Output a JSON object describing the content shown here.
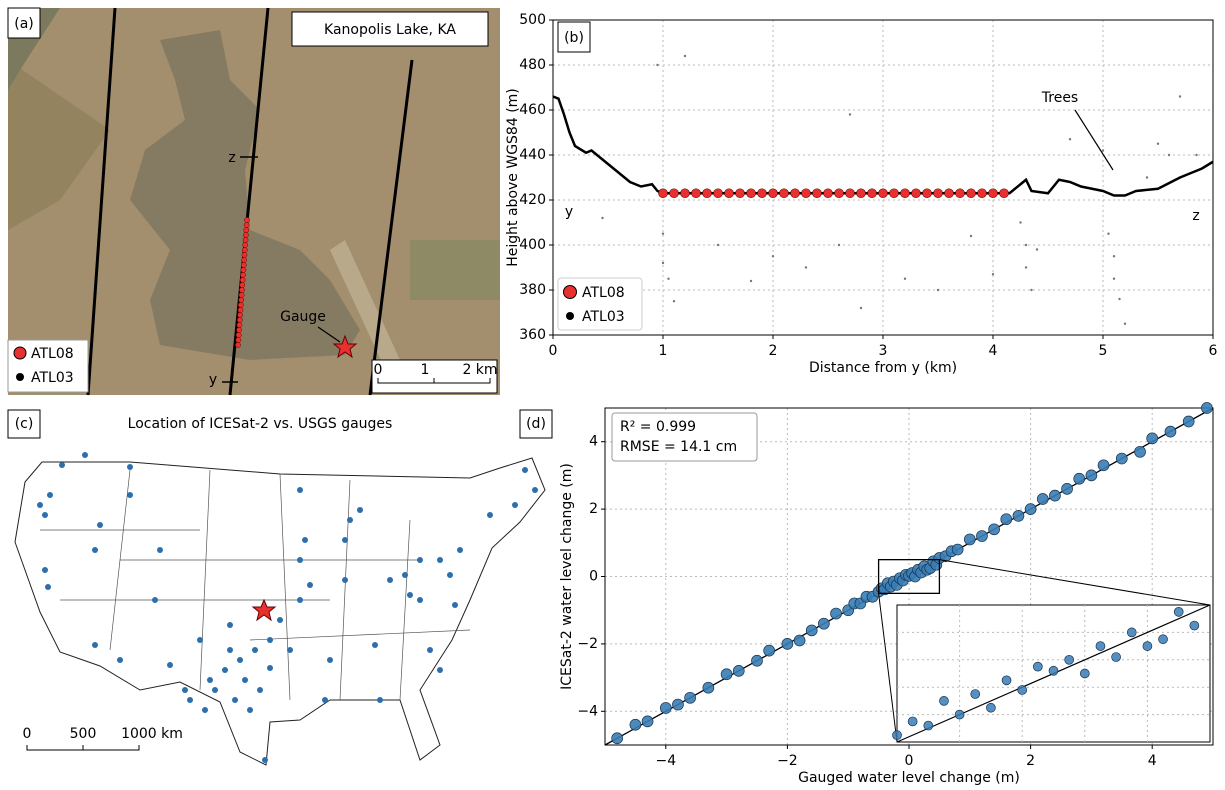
{
  "panel_a": {
    "label": "(a)",
    "title": "Kanopolis Lake, KA",
    "z_label": "z",
    "y_label": "y",
    "gauge_label": "Gauge",
    "legend": [
      "ATL08",
      "ATL03"
    ],
    "scale_labels": [
      "0",
      "1",
      "2 km"
    ]
  },
  "panel_c": {
    "label": "(c)",
    "title": "Location of ICESat-2 vs. USGS gauges",
    "scale_labels": [
      "0",
      "500",
      "1000 km"
    ]
  },
  "chart_data": [
    {
      "type": "line",
      "panel_label": "(b)",
      "xlabel": "Distance from y (km)",
      "ylabel": "Height above WGS84 (m)",
      "xlim": [
        0,
        6
      ],
      "ylim": [
        360,
        500
      ],
      "xticks": [
        0,
        1,
        2,
        3,
        4,
        5,
        6
      ],
      "yticks": [
        360,
        380,
        400,
        420,
        440,
        460,
        480,
        500
      ],
      "grid": true,
      "annotations": {
        "start": "y",
        "end": "z",
        "trees": "Trees"
      },
      "legend": "lower left",
      "series": [
        {
          "name": "ATL08",
          "color": "#e8312f",
          "x": [
            1.0,
            1.1,
            1.2,
            1.3,
            1.4,
            1.5,
            1.6,
            1.7,
            1.8,
            1.9,
            2.0,
            2.1,
            2.2,
            2.3,
            2.4,
            2.5,
            2.6,
            2.7,
            2.8,
            2.9,
            3.0,
            3.1,
            3.2,
            3.3,
            3.4,
            3.5,
            3.6,
            3.7,
            3.8,
            3.9,
            4.0,
            4.1
          ],
          "values": [
            423,
            423,
            423,
            423,
            423,
            423,
            423,
            423,
            423,
            423,
            423,
            423,
            423,
            423,
            423,
            423,
            423,
            423,
            423,
            423,
            423,
            423,
            423,
            423,
            423,
            423,
            423,
            423,
            423,
            423,
            423,
            423
          ]
        },
        {
          "name": "ATL03",
          "color": "#000000",
          "x": [
            0,
            0.05,
            0.1,
            0.15,
            0.2,
            0.3,
            0.35,
            0.4,
            0.5,
            0.6,
            0.7,
            0.8,
            0.9,
            0.95,
            1.0,
            4.15,
            4.25,
            4.3,
            4.35,
            4.5,
            4.6,
            4.7,
            4.8,
            4.9,
            5.0,
            5.1,
            5.2,
            5.3,
            5.5,
            5.7,
            5.8,
            5.9,
            6.0
          ],
          "values": [
            466,
            465,
            458,
            450,
            444,
            441,
            442,
            440,
            436,
            432,
            428,
            426,
            427,
            424,
            423,
            423,
            427,
            429,
            424,
            423,
            429,
            428,
            426,
            425,
            424,
            422,
            422,
            424,
            425,
            430,
            432,
            434,
            437
          ],
          "photons_x": [
            0.95,
            1.0,
            1.0,
            1.05,
            1.1,
            1.2,
            1.5,
            1.8,
            2.0,
            2.3,
            2.6,
            2.8,
            3.2,
            3.5,
            3.8,
            4.0,
            4.25,
            4.3,
            4.3,
            4.35,
            4.4,
            4.7,
            5.0,
            5.05,
            5.1,
            5.1,
            5.15,
            5.2,
            5.4,
            5.5,
            5.6,
            5.7,
            5.85,
            0.45,
            2.7
          ],
          "photons": [
            480,
            392,
            405,
            385,
            375,
            484,
            400,
            384,
            395,
            390,
            400,
            372,
            385,
            380,
            404,
            387,
            410,
            400,
            390,
            380,
            398,
            447,
            442,
            405,
            395,
            385,
            376,
            365,
            430,
            445,
            440,
            466,
            440,
            412,
            458
          ]
        }
      ]
    },
    {
      "type": "scatter",
      "panel_label": "(d)",
      "xlabel": "Gauged water level change (m)",
      "ylabel": "ICESat-2 water level change (m)",
      "xlim": [
        -5,
        5
      ],
      "ylim": [
        -5,
        5
      ],
      "xticks": [
        {
          "value": -4,
          "label": "−4"
        },
        {
          "value": -2,
          "label": "−2"
        },
        0,
        2,
        4
      ],
      "yticks": [
        {
          "value": -4,
          "label": "−4"
        },
        {
          "value": -2,
          "label": "−2"
        },
        0,
        2,
        4
      ],
      "grid": true,
      "annotations": [
        "R² = 0.999",
        "RMSE = 14.1 cm"
      ],
      "color": "#3a7db5",
      "x": [
        -4.8,
        -4.5,
        -4.3,
        -4.0,
        -3.8,
        -3.6,
        -3.3,
        -3.0,
        -2.8,
        -2.5,
        -2.3,
        -2.0,
        -1.8,
        -1.6,
        -1.4,
        -1.2,
        -1.0,
        -0.9,
        -0.8,
        -0.7,
        -0.6,
        -0.5,
        -0.45,
        -0.4,
        -0.35,
        -0.3,
        -0.25,
        -0.2,
        -0.15,
        -0.1,
        -0.05,
        0,
        0.05,
        0.1,
        0.15,
        0.2,
        0.25,
        0.3,
        0.35,
        0.4,
        0.45,
        0.5,
        0.6,
        0.7,
        0.8,
        1.0,
        1.2,
        1.4,
        1.6,
        1.8,
        2.0,
        2.2,
        2.4,
        2.6,
        2.8,
        3.0,
        3.2,
        3.5,
        3.8,
        4.0,
        4.3,
        4.6,
        4.9
      ],
      "values": [
        -4.8,
        -4.4,
        -4.3,
        -3.9,
        -3.8,
        -3.6,
        -3.3,
        -2.9,
        -2.8,
        -2.5,
        -2.2,
        -2.0,
        -1.9,
        -1.6,
        -1.4,
        -1.1,
        -1.0,
        -0.8,
        -0.8,
        -0.6,
        -0.6,
        -0.45,
        -0.35,
        -0.38,
        -0.2,
        -0.3,
        -0.15,
        -0.25,
        -0.05,
        -0.12,
        0.05,
        0.02,
        0.1,
        0.0,
        0.2,
        0.12,
        0.3,
        0.2,
        0.25,
        0.45,
        0.35,
        0.55,
        0.6,
        0.75,
        0.8,
        1.1,
        1.2,
        1.4,
        1.7,
        1.8,
        2.0,
        2.3,
        2.4,
        2.6,
        2.9,
        3.0,
        3.3,
        3.5,
        3.7,
        4.1,
        4.3,
        4.6,
        5.0
      ]
    }
  ]
}
